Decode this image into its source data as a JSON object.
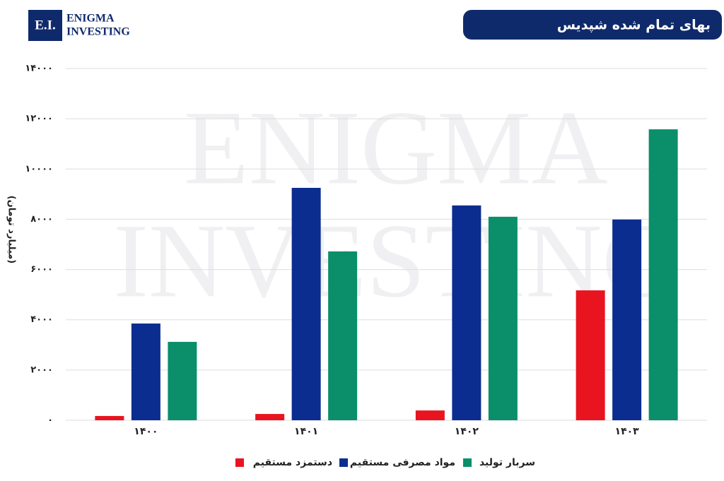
{
  "logo": {
    "mark": "E.I.",
    "line1": "ENIGMA",
    "line2": "INVESTING"
  },
  "chart_data": {
    "type": "bar",
    "title": "بهای تمام شده شپدیس",
    "y_label": "(میلیارد تومان)",
    "watermark": [
      "ENIGMA",
      "INVESTING"
    ],
    "categories": [
      "۱۴۰۰",
      "۱۴۰۱",
      "۱۴۰۲",
      "۱۴۰۳"
    ],
    "series": [
      {
        "name": "دستمزد مستقیم",
        "color": "#e8141f",
        "values": [
          170,
          250,
          390,
          5170
        ]
      },
      {
        "name": "مواد مصرفی مستقیم",
        "color": "#0a2d8f",
        "values": [
          3850,
          9250,
          8550,
          7990
        ]
      },
      {
        "name": "سربار تولید",
        "color": "#0a8f6a",
        "values": [
          3120,
          6720,
          8100,
          11580
        ]
      }
    ],
    "ylim": [
      0,
      14000
    ],
    "yticks": [
      {
        "value": 0,
        "label": "۰"
      },
      {
        "value": 2000,
        "label": "۲۰۰۰"
      },
      {
        "value": 4000,
        "label": "۴۰۰۰"
      },
      {
        "value": 6000,
        "label": "۶۰۰۰"
      },
      {
        "value": 8000,
        "label": "۸۰۰۰"
      },
      {
        "value": 10000,
        "label": "۱۰۰۰۰"
      },
      {
        "value": 12000,
        "label": "۱۲۰۰۰"
      },
      {
        "value": 14000,
        "label": "۱۴۰۰۰"
      }
    ],
    "grid": true
  }
}
